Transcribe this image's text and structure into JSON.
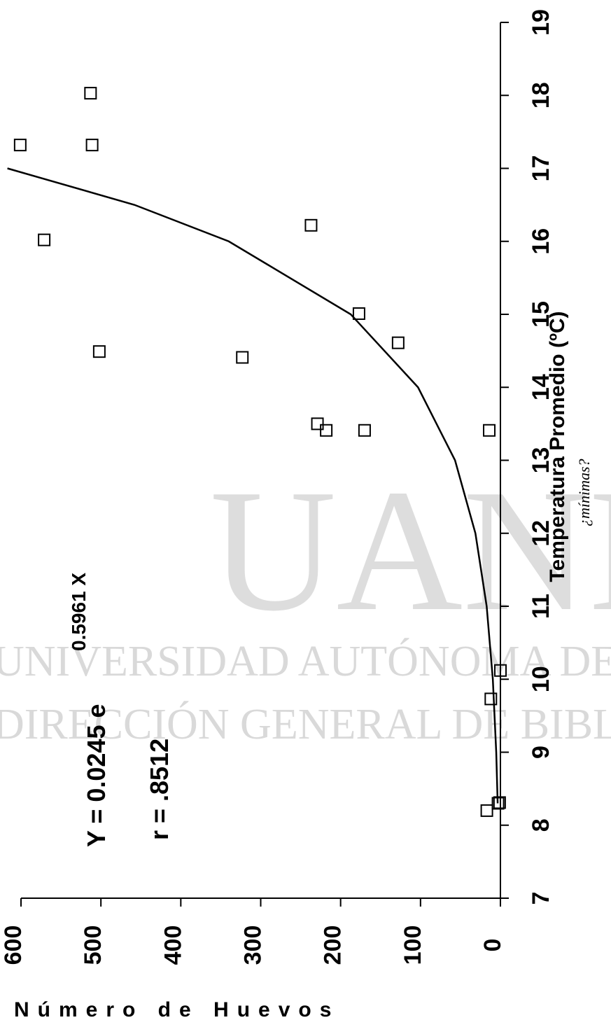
{
  "chart_data": {
    "type": "scatter",
    "xlabel": "Temperatura Promedio (ºC)",
    "ylabel": "Número de Huevos",
    "annotations": {
      "equation": "Y = 0.0245 e",
      "exponent": "0.5961 X",
      "r": "r = .8512",
      "note": "¿mínimas?"
    },
    "watermark": [
      "UANL",
      "UNIVERSIDAD AUTÓNOMA DE NUEVO LEÓN",
      "DIRECCIÓN GENERAL DE BIBLIOTECAS"
    ],
    "xlim": [
      7,
      19
    ],
    "xticks": [
      7,
      8,
      9,
      10,
      11,
      12,
      13,
      14,
      15,
      16,
      17,
      18,
      19
    ],
    "ylim": [
      0,
      600
    ],
    "yticks": [
      0,
      100,
      200,
      300,
      400,
      500,
      600
    ],
    "color": "#000000",
    "x": [
      17.32,
      18.03,
      17.32,
      16.02,
      16.22,
      15.01,
      14.61,
      14.41,
      14.49,
      13.5,
      13.41,
      13.41,
      13.41,
      10.12,
      9.73,
      8.2,
      8.3,
      8.31
    ],
    "values": [
      601,
      513,
      511,
      571,
      237,
      177,
      128,
      323,
      502,
      229,
      218,
      170,
      14,
      0,
      12,
      17,
      3,
      1
    ],
    "fit": {
      "x": [
        8.3,
        9,
        10,
        11,
        12,
        13,
        14,
        15,
        16,
        16.5,
        17
      ],
      "values": [
        3.45,
        5.24,
        9.5,
        17.2,
        31.3,
        56.8,
        103.1,
        187.3,
        340,
        458,
        617
      ]
    }
  }
}
